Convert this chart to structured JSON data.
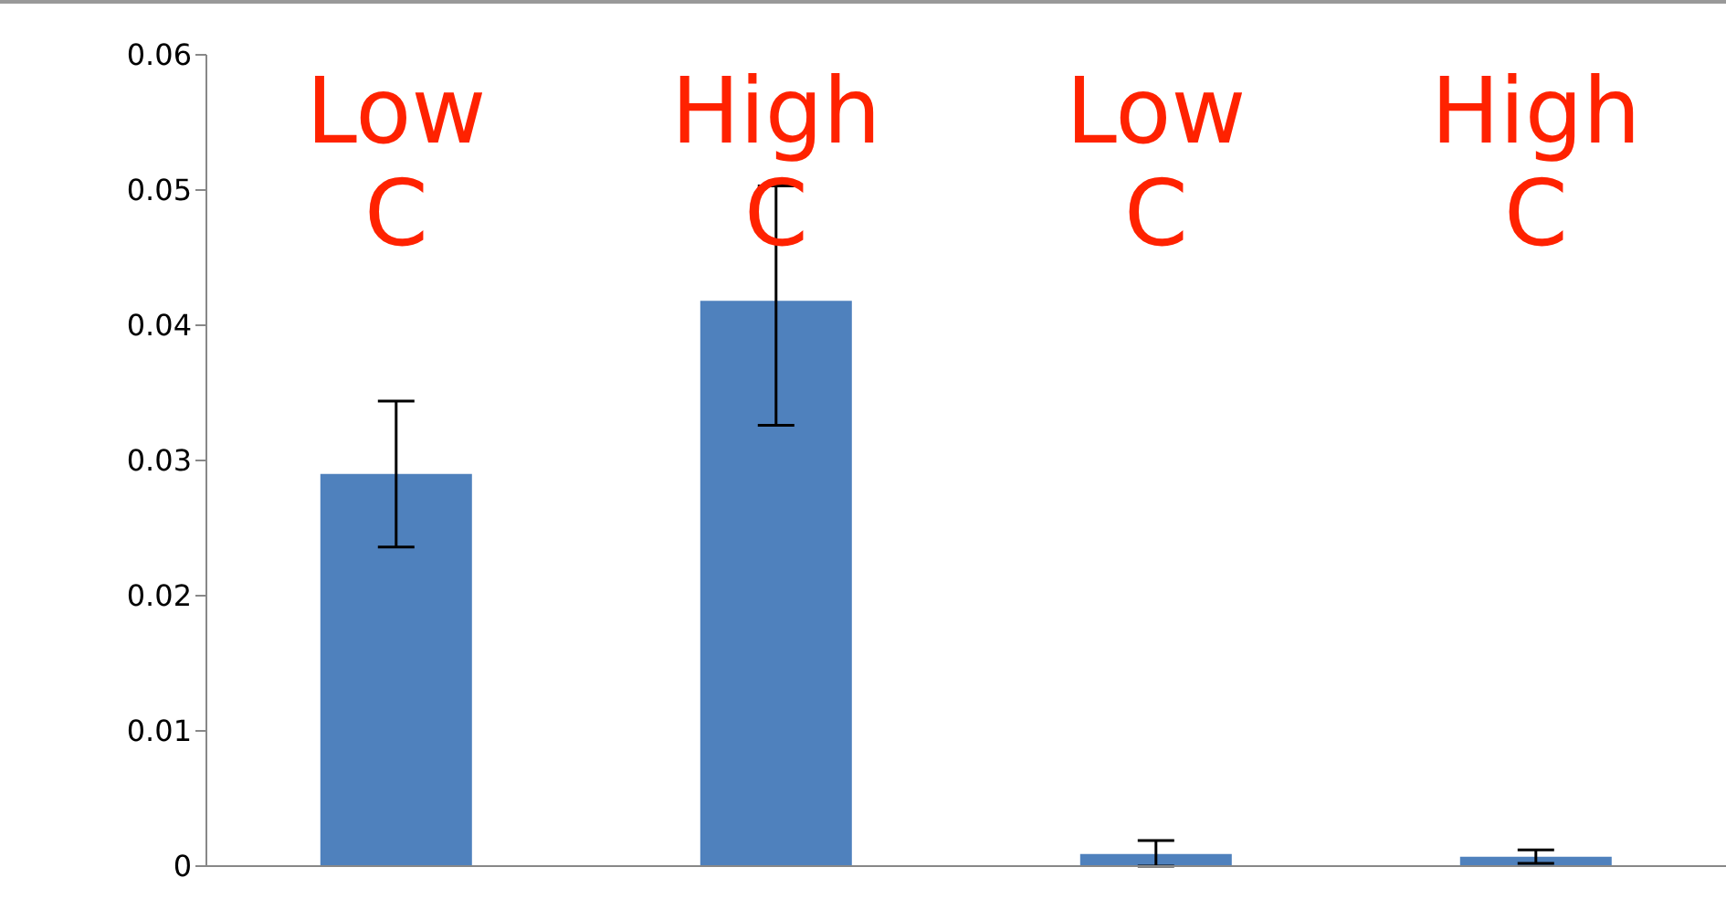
{
  "chart_data": {
    "type": "bar",
    "categories": [
      "Low C",
      "High C",
      "Low C",
      "High C"
    ],
    "values": [
      0.029,
      0.0418,
      0.0009,
      0.0007
    ],
    "errors": [
      [
        0.0236,
        0.0344
      ],
      [
        0.0326,
        0.0503
      ],
      [
        0,
        0.0019
      ],
      [
        0.0002,
        0.0012
      ]
    ],
    "color": "#4f81bd",
    "ylim": [
      0,
      0.06
    ],
    "yticks": [
      0,
      0.01,
      0.02,
      0.03,
      0.04,
      0.05,
      0.06
    ]
  }
}
